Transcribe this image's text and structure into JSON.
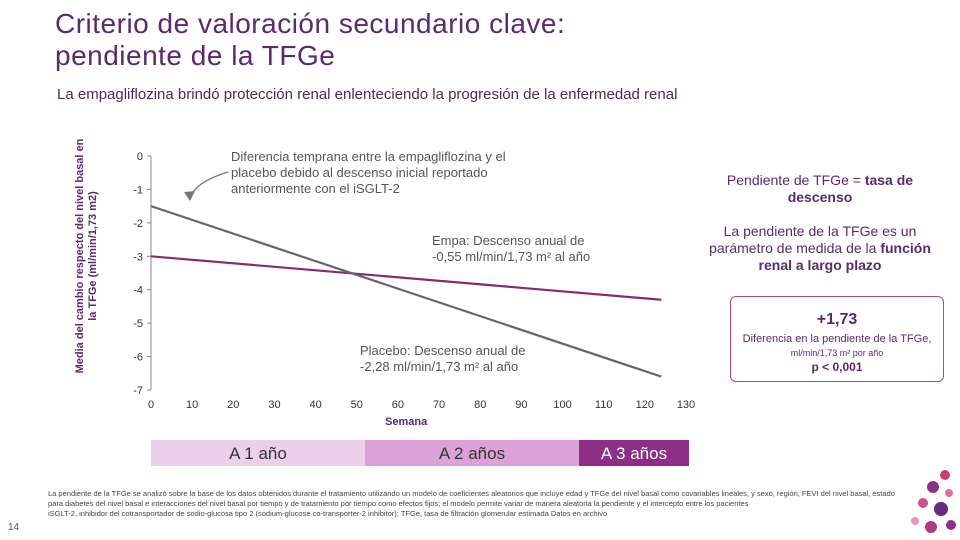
{
  "header": {
    "title_line1": "Criterio de valoración secundario clave:",
    "title_line2": "pendiente de la TFGe",
    "subtitle": "La empagliflozina brindó protección renal enlenteciendo la progresión de la enfermedad renal"
  },
  "chart_data": {
    "type": "line",
    "ylabel": "Media del cambio respecto del nivel basal en la TFGe (ml/min/1,73 m2)",
    "xlabel": "Semana",
    "xlim": [
      0,
      130
    ],
    "ylim": [
      -7,
      0
    ],
    "x_ticks": [
      0,
      10,
      20,
      30,
      40,
      50,
      60,
      70,
      80,
      90,
      100,
      110,
      120,
      130
    ],
    "y_ticks": [
      0,
      -1,
      -2,
      -3,
      -4,
      -5,
      -6,
      -7
    ],
    "series": [
      {
        "x": [
          0,
          124
        ],
        "y": [
          -3.0,
          -4.3
        ],
        "color": "#8a2a6a"
      },
      {
        "x": [
          0,
          124
        ],
        "y": [
          -1.5,
          -6.6
        ],
        "color": "#666666"
      }
    ]
  },
  "annotations": {
    "early": [
      "Diferencia temprana entre la empagliflozina y el",
      "placebo debido al descenso inicial reportado",
      "anteriormente con el iSGLT-2"
    ],
    "empa": [
      "Empa: Descenso anual de",
      "-0,55 ml/min/1,73 m² al año"
    ],
    "placebo": [
      "Placebo: Descenso anual de",
      "-2,28 ml/min/1,73 m² al año"
    ]
  },
  "side_text": {
    "slope_a": "Pendiente de TFGe = ",
    "slope_b": "tasa de descenso",
    "param_a": "La pendiente de la TFGe es un parámetro de medida de la ",
    "param_b": "función renal a largo plazo"
  },
  "result_box": {
    "value": "+1,73",
    "line1": "Diferencia en la pendiente de la TFGe,",
    "line2": "ml/min/1,73 m² por año",
    "pvalue": "p < 0,001"
  },
  "periods": [
    {
      "label": "A 1 año",
      "color": "#ecd0ea",
      "text_color": "#333333"
    },
    {
      "label": "A 2 años",
      "color": "#dca1d8",
      "text_color": "#333333"
    },
    {
      "label": "A 3 años",
      "color": "#8e2f87",
      "text_color": "#ffffff"
    }
  ],
  "footnote": {
    "line1": "La pendiente de la TFGe se analizó sobre la base de los datos obtenidos durante el tratamiento utilizando un modelo de coeficientes aleatorios que incluye edad y TFGe del nivel basal como covariables lineales, y sexo, región, FEVI del nivel basal, estado para diabetes del nivel basal e interacciones del nivel basal por tiempo y de tratamiento por tiempo como efectos fijos; el modelo permite variar de manera aleatoria la pendiente y el intercepto entre los pacientes",
    "line2": "iSGLT-2, inhibidor del cotransportador de sodio-glucosa tipo 2 (sodium-glucose co-transporter-2 inhibitor); TFGe, tasa de filtración glomerular estimada Datos en archivo"
  },
  "page_number": "14",
  "colors": {
    "title": "#5a2a6e",
    "accent": "#c0437a",
    "empa_line": "#8a2a6a",
    "placebo_line": "#666666"
  }
}
